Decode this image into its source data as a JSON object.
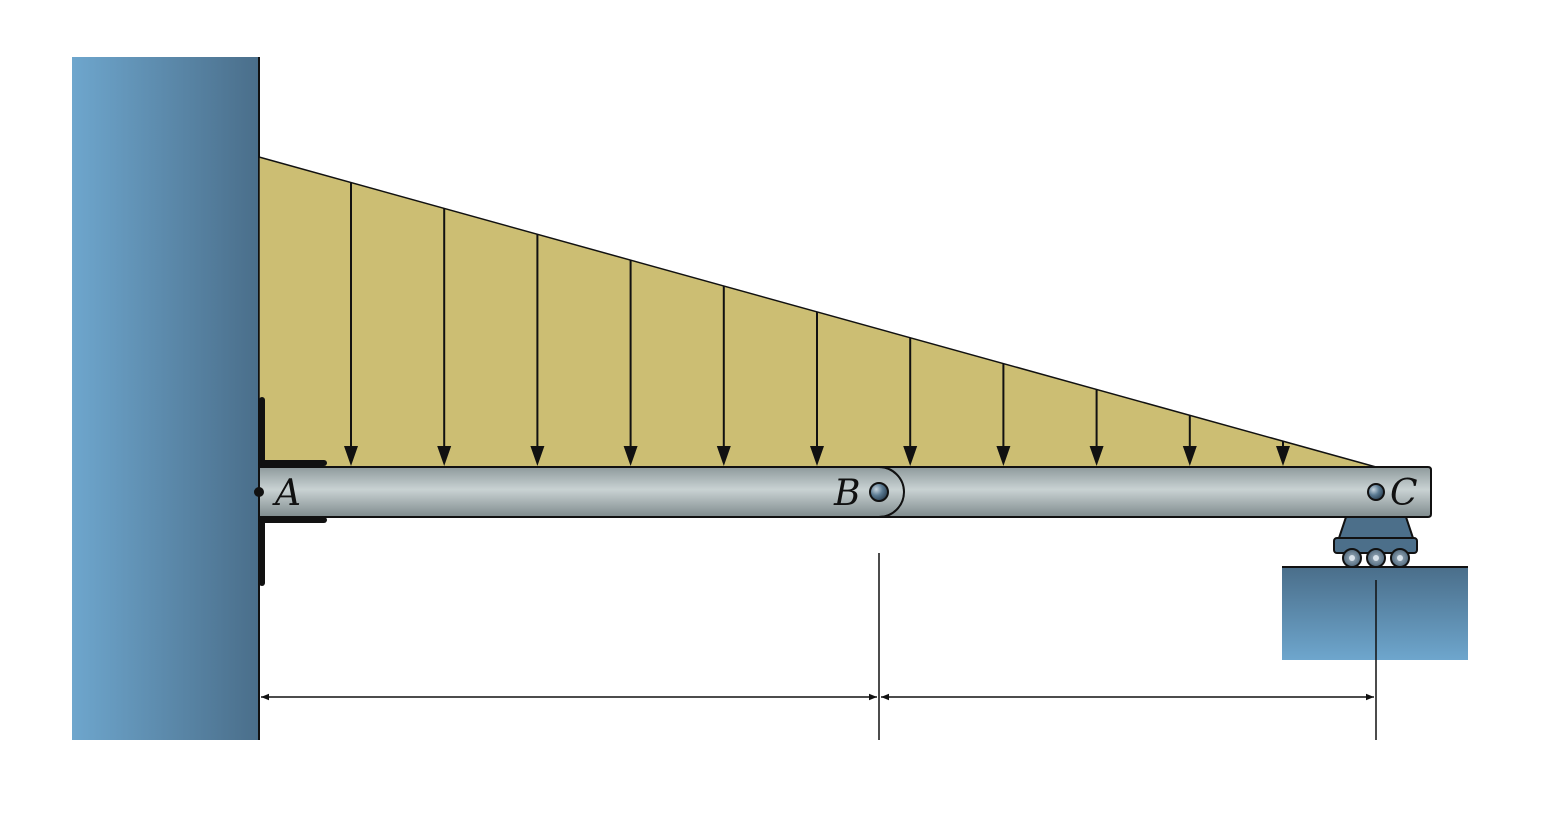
{
  "labels": {
    "a": "A",
    "b": "B",
    "c": "C"
  },
  "colors": {
    "wall_light": "#6ea6cd",
    "wall_dark": "#4a6e8a",
    "load_fill": "#ccbe73",
    "beam_light": "#c9d2d3",
    "beam_dark": "#8e9a9c",
    "support": "#4c6f8a",
    "outline": "#111111"
  },
  "load": {
    "type": "linearly-varying distributed load",
    "arrow_count": 12
  }
}
